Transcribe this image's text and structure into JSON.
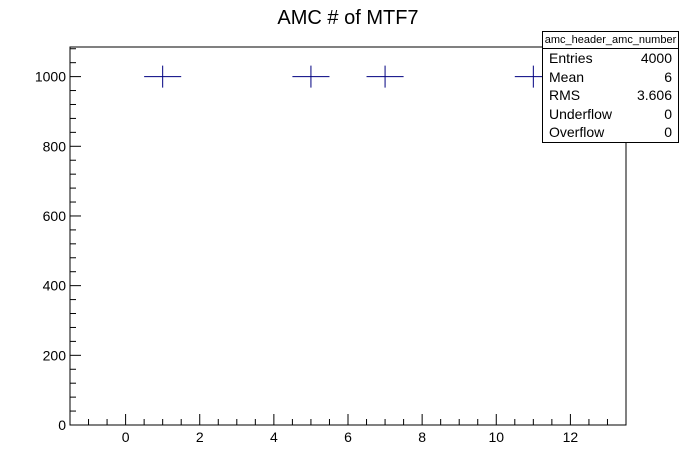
{
  "chart_data": {
    "type": "scatter",
    "title": "AMC # of MTF7",
    "xlabel": "",
    "ylabel": "",
    "xlim": [
      -1.5,
      13.5
    ],
    "ylim": [
      0,
      1085
    ],
    "x_ticks": [
      0,
      2,
      4,
      6,
      8,
      10,
      12
    ],
    "y_ticks": [
      0,
      200,
      400,
      600,
      800,
      1000
    ],
    "grid": false,
    "marker_color": "#000080",
    "points": [
      {
        "x": 1,
        "y": 1000
      },
      {
        "x": 5,
        "y": 1000
      },
      {
        "x": 7,
        "y": 1000
      },
      {
        "x": 11,
        "y": 1000
      }
    ],
    "stats_box": {
      "name": "amc_header_amc_number",
      "rows": [
        {
          "label": "Entries",
          "value": "4000"
        },
        {
          "label": "Mean",
          "value": "6"
        },
        {
          "label": "RMS",
          "value": "3.606"
        },
        {
          "label": "Underflow",
          "value": "0"
        },
        {
          "label": "Overflow",
          "value": "0"
        }
      ]
    }
  }
}
